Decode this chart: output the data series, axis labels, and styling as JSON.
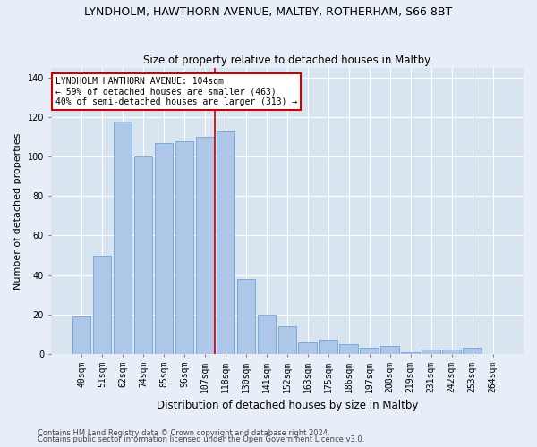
{
  "title": "LYNDHOLM, HAWTHORN AVENUE, MALTBY, ROTHERHAM, S66 8BT",
  "subtitle": "Size of property relative to detached houses in Maltby",
  "xlabel": "Distribution of detached houses by size in Maltby",
  "ylabel": "Number of detached properties",
  "categories": [
    "40sqm",
    "51sqm",
    "62sqm",
    "74sqm",
    "85sqm",
    "96sqm",
    "107sqm",
    "118sqm",
    "130sqm",
    "141sqm",
    "152sqm",
    "163sqm",
    "175sqm",
    "186sqm",
    "197sqm",
    "208sqm",
    "219sqm",
    "231sqm",
    "242sqm",
    "253sqm",
    "264sqm"
  ],
  "values": [
    19,
    50,
    118,
    100,
    107,
    108,
    110,
    113,
    38,
    20,
    14,
    6,
    7,
    5,
    3,
    4,
    1,
    2,
    2,
    3,
    0
  ],
  "bar_color": "#aec6e8",
  "bar_edgecolor": "#5b9bd5",
  "vline_x": 6.5,
  "vline_color": "#cc0000",
  "annotation_text": "LYNDHOLM HAWTHORN AVENUE: 104sqm\n← 59% of detached houses are smaller (463)\n40% of semi-detached houses are larger (313) →",
  "annotation_box_color": "#ffffff",
  "annotation_box_edgecolor": "#cc0000",
  "ylim": [
    0,
    145
  ],
  "yticks": [
    0,
    20,
    40,
    60,
    80,
    100,
    120,
    140
  ],
  "footer_line1": "Contains HM Land Registry data © Crown copyright and database right 2024.",
  "footer_line2": "Contains public sector information licensed under the Open Government Licence v3.0.",
  "background_color": "#e8eef8",
  "plot_background_color": "#d8e4f0",
  "title_fontsize": 9,
  "subtitle_fontsize": 8.5,
  "ylabel_fontsize": 8,
  "xlabel_fontsize": 8.5,
  "tick_fontsize": 7,
  "annotation_fontsize": 7,
  "footer_fontsize": 6
}
